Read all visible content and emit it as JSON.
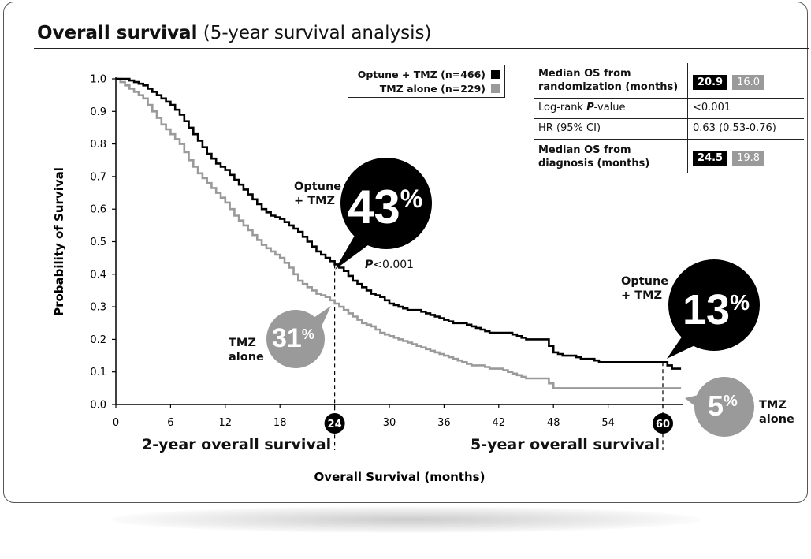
{
  "title": {
    "bold": "Overall survival",
    "rest": "(5-year survival analysis)"
  },
  "legend": [
    {
      "label": "Optune + TMZ (n=466)",
      "color": "#000000"
    },
    {
      "label": "TMZ alone (n=229)",
      "color": "#9a9a9a"
    }
  ],
  "stats": {
    "rows": [
      {
        "label": "Median OS from randomization (months)",
        "optune": "20.9",
        "tmz": "16.0"
      },
      {
        "label_prefix": "Log-rank ",
        "label_em": "P",
        "label_suffix": "-value",
        "value": "<0.001"
      },
      {
        "label": "HR (95% CI)",
        "value": "0.63 (0.53-0.76)"
      },
      {
        "label": "Median OS from diagnosis (months)",
        "optune": "24.5",
        "tmz": "19.8"
      }
    ]
  },
  "annotations": {
    "optune_24_label": [
      "Optune",
      "+ TMZ"
    ],
    "optune_24_value": "43",
    "p_value_prefix": "P",
    "p_value_suffix": "<0.001",
    "tmz_24_label": [
      "TMZ",
      "alone"
    ],
    "tmz_24_value": "31",
    "optune_60_label": [
      "Optune",
      "+ TMZ"
    ],
    "optune_60_value": "13",
    "tmz_60_label": [
      "TMZ",
      "alone"
    ],
    "tmz_60_value": "5",
    "percent": "%"
  },
  "sections": {
    "two_year": "2-year overall survival",
    "five_year": "5-year overall survival"
  },
  "chart_data": {
    "type": "line",
    "title": "Overall survival (5-year survival analysis)",
    "xlabel": "Overall Survival (months)",
    "ylabel": "Probability of Survival",
    "xlim": [
      0,
      60
    ],
    "ylim": [
      0,
      1
    ],
    "xticks": [
      0,
      6,
      12,
      18,
      24,
      30,
      36,
      42,
      48,
      54,
      60
    ],
    "yticks": [
      0.0,
      0.1,
      0.2,
      0.3,
      0.4,
      0.5,
      0.6,
      0.7,
      0.8,
      0.9,
      1.0
    ],
    "highlight_x": [
      24,
      60
    ],
    "series": [
      {
        "name": "Optune + TMZ (n=466)",
        "color": "#000000",
        "x": [
          0,
          1,
          2,
          3,
          4,
          5,
          6,
          7,
          8,
          9,
          10,
          11,
          12,
          13,
          14,
          15,
          16,
          17,
          18,
          19,
          20,
          21,
          22,
          23,
          24,
          25,
          26,
          27,
          28,
          29,
          30,
          31,
          32,
          33,
          34,
          35,
          36,
          37,
          38,
          39,
          40,
          41,
          42,
          43,
          44,
          45,
          46,
          47,
          48,
          49,
          50,
          51,
          52,
          53,
          54,
          55,
          56,
          57,
          58,
          59,
          60,
          61,
          62
        ],
        "y": [
          1.0,
          1.0,
          0.99,
          0.98,
          0.96,
          0.94,
          0.92,
          0.89,
          0.85,
          0.81,
          0.77,
          0.74,
          0.72,
          0.69,
          0.66,
          0.63,
          0.6,
          0.58,
          0.57,
          0.55,
          0.53,
          0.5,
          0.47,
          0.45,
          0.43,
          0.41,
          0.38,
          0.36,
          0.34,
          0.33,
          0.31,
          0.3,
          0.29,
          0.29,
          0.28,
          0.27,
          0.26,
          0.25,
          0.25,
          0.24,
          0.23,
          0.22,
          0.22,
          0.22,
          0.21,
          0.2,
          0.2,
          0.2,
          0.16,
          0.15,
          0.15,
          0.14,
          0.14,
          0.13,
          0.13,
          0.13,
          0.13,
          0.13,
          0.13,
          0.13,
          0.13,
          0.11,
          0.11
        ]
      },
      {
        "name": "TMZ alone (n=229)",
        "color": "#9a9a9a",
        "x": [
          0,
          1,
          2,
          3,
          4,
          5,
          6,
          7,
          8,
          9,
          10,
          11,
          12,
          13,
          14,
          15,
          16,
          17,
          18,
          19,
          20,
          21,
          22,
          23,
          24,
          25,
          26,
          27,
          28,
          29,
          30,
          31,
          32,
          33,
          34,
          35,
          36,
          37,
          38,
          39,
          40,
          41,
          42,
          43,
          44,
          45,
          46,
          47,
          48,
          49,
          50,
          51,
          52,
          53,
          54,
          55,
          56,
          57,
          58,
          59,
          60,
          61,
          62
        ],
        "y": [
          1.0,
          0.98,
          0.96,
          0.94,
          0.9,
          0.86,
          0.83,
          0.8,
          0.75,
          0.71,
          0.68,
          0.65,
          0.62,
          0.58,
          0.55,
          0.52,
          0.49,
          0.47,
          0.45,
          0.42,
          0.38,
          0.36,
          0.34,
          0.33,
          0.31,
          0.29,
          0.27,
          0.25,
          0.24,
          0.22,
          0.21,
          0.2,
          0.19,
          0.18,
          0.17,
          0.16,
          0.15,
          0.14,
          0.13,
          0.12,
          0.12,
          0.11,
          0.11,
          0.1,
          0.09,
          0.08,
          0.08,
          0.08,
          0.05,
          0.05,
          0.05,
          0.05,
          0.05,
          0.05,
          0.05,
          0.05,
          0.05,
          0.05,
          0.05,
          0.05,
          0.05,
          0.05,
          0.05
        ]
      }
    ]
  }
}
